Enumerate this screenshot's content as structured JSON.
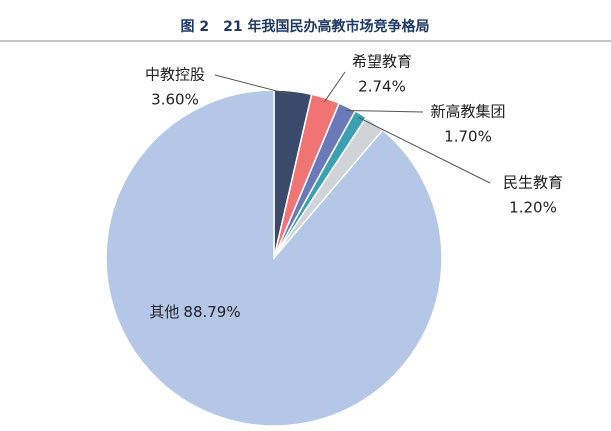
{
  "chart_data": {
    "type": "pie",
    "title": "图 2　21 年我国民办高教市场竞争格局",
    "categories": [
      "中教控股",
      "希望教育",
      "新高教集团",
      "民生教育",
      null,
      "其他"
    ],
    "values": [
      3.6,
      2.74,
      1.7,
      1.2,
      1.97,
      88.79
    ],
    "value_labels": [
      "3.60%",
      "2.74%",
      "1.70%",
      "1.20%",
      null,
      "88.79%"
    ],
    "colors": [
      "#3b4a6b",
      "#f07474",
      "#6a7ab8",
      "#3ba0b0",
      "#d0d3d8",
      "#b4c7e7"
    ]
  }
}
